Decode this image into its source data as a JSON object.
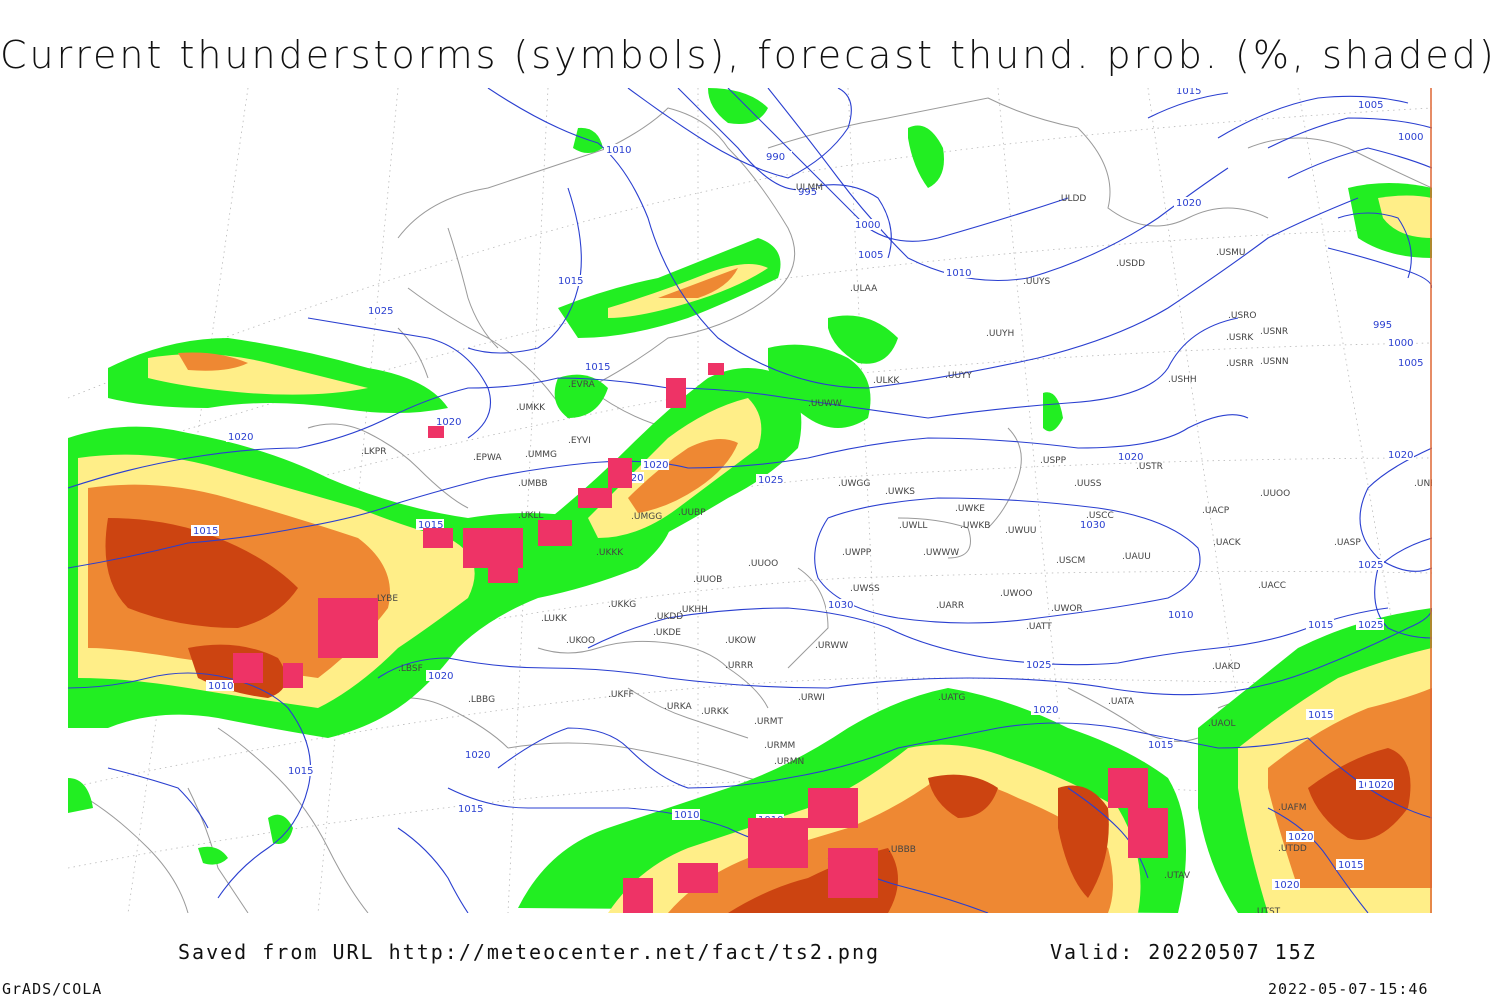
{
  "title": "Current thunderstorms (symbols), forecast thund. prob. (%, shaded)",
  "footer": {
    "saved_from": "Saved from URL http://meteocenter.net/fact/ts2.png",
    "valid": "Valid: 20220507 15Z",
    "software": "GrADS/COLA",
    "created": "2022-05-07-15:46"
  },
  "colors": {
    "background": "#ffffff",
    "isobar": "#2a3fd0",
    "coastline": "#9a9a9a",
    "grid": "#b0b0b0",
    "prob_low": "#22ee22",
    "prob_mid": "#ffee88",
    "prob_high": "#ee8833",
    "prob_max": "#cc4411",
    "thunderstorm_symbol": "#ee3366",
    "frame_edge": "#dd6633"
  },
  "isobar_labels": [
    "1010",
    "990",
    "995",
    "1000",
    "1005",
    "1010",
    "1015",
    "1020",
    "1025",
    "1015",
    "1015",
    "1020",
    "1020",
    "1015",
    "1020",
    "1020",
    "1025",
    "1020",
    "1020",
    "1015",
    "1010",
    "1020",
    "1015",
    "1030",
    "1030",
    "1025",
    "1025",
    "1020",
    "1020",
    "1015",
    "1015",
    "1010",
    "1010",
    "1015",
    "1015",
    "1020",
    "1025",
    "1020",
    "1015",
    "1020",
    "1010",
    "1020",
    "1005",
    "1000",
    "995",
    "1000",
    "1005",
    "1010"
  ],
  "stations": [
    "ULDD",
    "ULMM",
    "ULAA",
    "USDD",
    "USMU",
    "UUYS",
    "UUYH",
    "USRO",
    "USRK",
    "USNR",
    "USRR",
    "USNN",
    "ULKK",
    "UUYY",
    "USHH",
    "UUWW",
    "EVRA",
    "UMKK",
    "EYVI",
    "EPWA",
    "UMMG",
    "UMBB",
    "UKLL",
    "UMGG",
    "UUBP",
    "UKKK",
    "USPP",
    "UUSS",
    "USTR",
    "UUOO",
    "UNBB",
    "UWGG",
    "UWKS",
    "UWKE",
    "UWLL",
    "UWKB",
    "UWUU",
    "USCC",
    "UACP",
    "UACK",
    "UASP",
    "UWPP",
    "UWWW",
    "USCM",
    "UAUU",
    "UUOB",
    "UUOO",
    "UWSS",
    "UARR",
    "UWOO",
    "UWOR",
    "UACC",
    "UKKG",
    "UKDD",
    "UKHH",
    "LUKK",
    "UKOO",
    "UKDE",
    "UKOW",
    "URWW",
    "UATT",
    "URRR",
    "UAKD",
    "LBBG",
    "UKFF",
    "URKA",
    "URKK",
    "URWI",
    "UATG",
    "UATA",
    "URMT",
    "UAOL",
    "URMM",
    "URMN",
    "UBBB",
    "UTAV",
    "UTST",
    "UTDD",
    "UAFM",
    "LYBE",
    "LBSF",
    "LKPR"
  ]
}
